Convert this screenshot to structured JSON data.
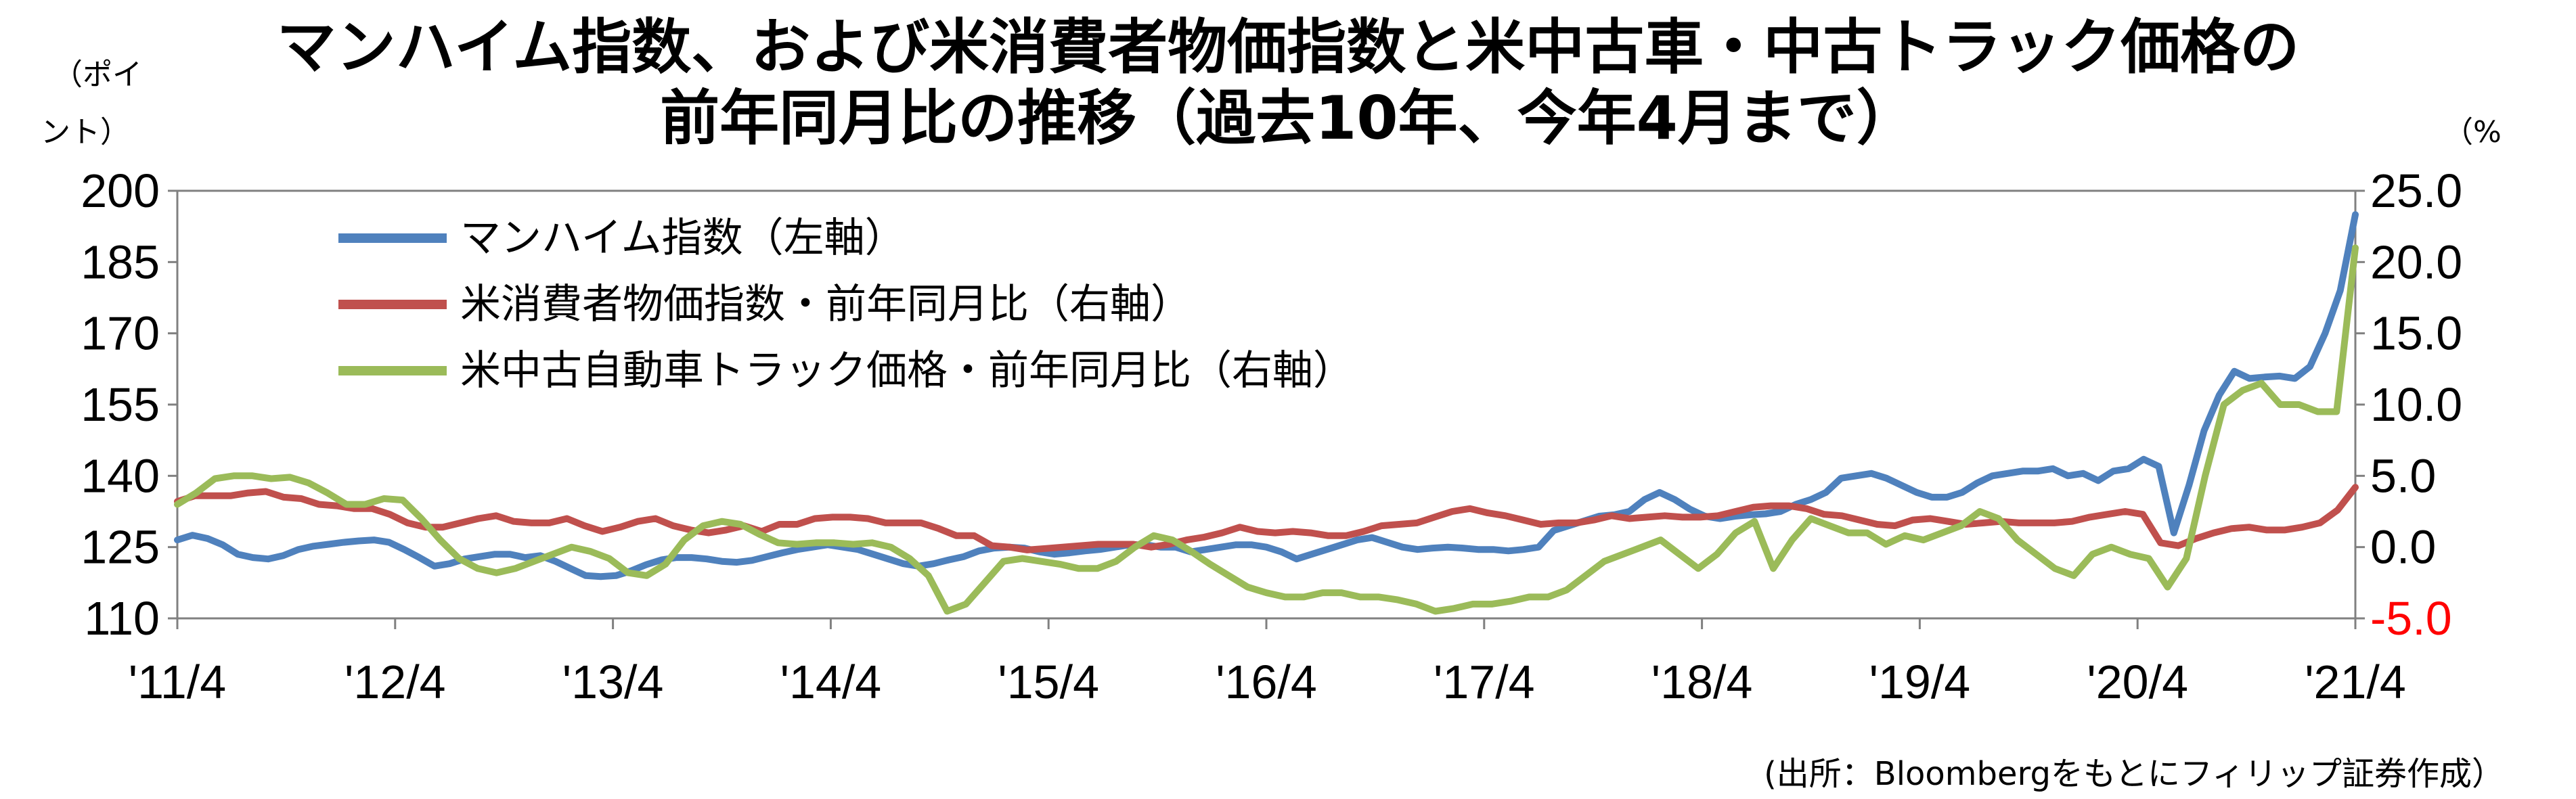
{
  "chart_data": {
    "type": "line",
    "title_line1": "マンハイム指数、および米消費者物価指数と米中古車・中古トラック価格の",
    "title_line2": "前年同月比の推移（過去10年、今年4月まで）",
    "left_axis_unit": [
      "（ポイ",
      "ント）"
    ],
    "right_axis_unit": "（%",
    "source": "(出所：Bloombergをもとにフィリップ証券作成）",
    "x_tick_labels": [
      "'11/4",
      "'12/4",
      "'13/4",
      "'14/4",
      "'15/4",
      "'16/4",
      "'17/4",
      "'18/4",
      "'19/4",
      "'20/4",
      "'21/4"
    ],
    "left_axis": {
      "ylim": [
        110,
        200
      ],
      "ticks": [
        "110",
        "125",
        "140",
        "155",
        "170",
        "185",
        "200"
      ]
    },
    "right_axis": {
      "ylim": [
        -5,
        25
      ],
      "ticks": [
        "-5.0",
        "0.0",
        "5.0",
        "10.0",
        "15.0",
        "20.0",
        "25.0"
      ],
      "negative_color": "#ff0000"
    },
    "x_start": "2011-04",
    "x_end": "2021-04",
    "grid": false,
    "legend_position": "top-left",
    "series": [
      {
        "name": "マンハイム指数（左軸）",
        "axis": "left",
        "color": "#4f81bd",
        "values": [
          126.5,
          127.5,
          126.8,
          125.5,
          123.5,
          122.8,
          122.5,
          123.2,
          124.5,
          125.2,
          125.6,
          126.0,
          126.3,
          126.5,
          126.0,
          124.5,
          122.8,
          121.0,
          121.5,
          122.5,
          123.0,
          123.5,
          123.5,
          122.8,
          123.2,
          122.0,
          120.5,
          119.0,
          118.8,
          119.0,
          120.0,
          121.3,
          122.3,
          122.8,
          122.8,
          122.5,
          122.0,
          121.8,
          122.2,
          123.0,
          123.8,
          124.5,
          125.0,
          125.5,
          125.0,
          124.5,
          123.5,
          122.5,
          121.5,
          121.0,
          121.5,
          122.3,
          123.0,
          124.2,
          124.8,
          125.0,
          124.8,
          124.0,
          123.5,
          123.8,
          124.2,
          124.5,
          125.0,
          125.5,
          125.5,
          125.0,
          125.0,
          124.0,
          124.5,
          125.0,
          125.5,
          125.5,
          125.0,
          124.0,
          122.5,
          123.5,
          124.5,
          125.5,
          126.5,
          127.0,
          126.0,
          125.0,
          124.5,
          124.8,
          125.0,
          124.8,
          124.5,
          124.5,
          124.2,
          124.5,
          125.0,
          128.5,
          129.5,
          130.5,
          131.5,
          131.8,
          132.5,
          135.0,
          136.5,
          135.0,
          133.0,
          131.5,
          131.0,
          131.5,
          131.8,
          132.0,
          132.5,
          134.0,
          135.0,
          136.5,
          139.5,
          140.0,
          140.5,
          139.5,
          138.0,
          136.5,
          135.5,
          135.5,
          136.5,
          138.5,
          140.0,
          140.5,
          141.0,
          141.0,
          141.5,
          140.0,
          140.5,
          139.0,
          141.0,
          141.5,
          143.5,
          142.0,
          128.0,
          138.0,
          149.5,
          157.0,
          162.0,
          160.5,
          160.8,
          161.0,
          160.5,
          163.0,
          170.0,
          179.0,
          195.0
        ]
      },
      {
        "name": "米消費者物価指数・前年同月比（右軸）",
        "axis": "right",
        "color": "#c0504d",
        "values": [
          3.2,
          3.6,
          3.6,
          3.6,
          3.8,
          3.9,
          3.5,
          3.4,
          3.0,
          2.9,
          2.7,
          2.7,
          2.3,
          1.7,
          1.4,
          1.4,
          1.7,
          2.0,
          2.2,
          1.8,
          1.7,
          1.7,
          2.0,
          1.5,
          1.1,
          1.4,
          1.8,
          2.0,
          1.5,
          1.2,
          1.0,
          1.2,
          1.5,
          1.1,
          1.6,
          1.6,
          2.0,
          2.1,
          2.1,
          2.0,
          1.7,
          1.7,
          1.7,
          1.3,
          0.8,
          0.8,
          0.1,
          0.0,
          -0.2,
          -0.1,
          0.0,
          0.1,
          0.2,
          0.2,
          0.2,
          0.0,
          0.2,
          0.5,
          0.7,
          1.0,
          1.4,
          1.1,
          1.0,
          1.1,
          1.0,
          0.8,
          0.8,
          1.1,
          1.5,
          1.6,
          1.7,
          2.1,
          2.5,
          2.7,
          2.4,
          2.2,
          1.9,
          1.6,
          1.7,
          1.7,
          1.9,
          2.2,
          2.0,
          2.1,
          2.2,
          2.1,
          2.1,
          2.2,
          2.5,
          2.8,
          2.9,
          2.9,
          2.7,
          2.3,
          2.2,
          1.9,
          1.6,
          1.5,
          1.9,
          2.0,
          1.8,
          1.6,
          1.7,
          1.8,
          1.7,
          1.7,
          1.7,
          1.8,
          2.1,
          2.3,
          2.5,
          2.3,
          0.3,
          0.1,
          0.6,
          1.0,
          1.3,
          1.4,
          1.2,
          1.2,
          1.4,
          1.7,
          2.6,
          4.2
        ]
      },
      {
        "name": "米中古自動車トラック価格・前年同月比（右軸）",
        "axis": "right",
        "color": "#9bbb59",
        "values": [
          3.0,
          3.8,
          4.8,
          5.0,
          5.0,
          4.8,
          4.9,
          4.5,
          3.8,
          3.0,
          3.0,
          3.4,
          3.3,
          2.0,
          0.5,
          -0.8,
          -1.5,
          -1.8,
          -1.5,
          -1.0,
          -0.5,
          0.0,
          -0.3,
          -0.8,
          -1.8,
          -2.0,
          -1.2,
          0.5,
          1.5,
          1.8,
          1.6,
          0.9,
          0.3,
          0.2,
          0.3,
          0.3,
          0.2,
          0.3,
          0.0,
          -0.8,
          -2.0,
          -4.5,
          -4.0,
          -2.5,
          -1.0,
          -0.8,
          -1.0,
          -1.2,
          -1.5,
          -1.5,
          -1.0,
          0.0,
          0.8,
          0.5,
          -0.3,
          -1.2,
          -2.0,
          -2.8,
          -3.2,
          -3.5,
          -3.5,
          -3.2,
          -3.2,
          -3.5,
          -3.5,
          -3.7,
          -4.0,
          -4.5,
          -4.3,
          -4.0,
          -4.0,
          -3.8,
          -3.5,
          -3.5,
          -3.0,
          -2.0,
          -1.0,
          -0.5,
          0.0,
          0.5,
          -0.5,
          -1.5,
          -0.5,
          1.0,
          1.8,
          -1.5,
          0.5,
          2.0,
          1.5,
          1.0,
          1.0,
          0.2,
          0.8,
          0.5,
          1.0,
          1.5,
          2.5,
          2.0,
          0.5,
          -0.5,
          -1.5,
          -2.0,
          -0.5,
          0.0,
          -0.5,
          -0.8,
          -2.8,
          -0.8,
          5.0,
          10.0,
          11.0,
          11.5,
          10.0,
          10.0,
          9.5,
          9.5,
          21.0
        ]
      }
    ]
  }
}
